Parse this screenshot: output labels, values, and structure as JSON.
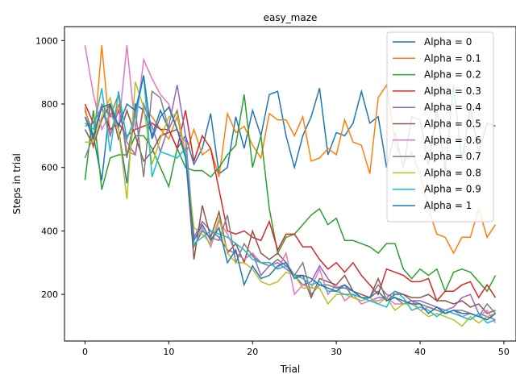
{
  "chart_data": {
    "type": "line",
    "title": "easy_maze",
    "xlabel": "Trial",
    "ylabel": "Steps in trial",
    "xlim": [
      -2.45,
      51.45
    ],
    "ylim": [
      53,
      1044
    ],
    "xticks": [
      0,
      10,
      20,
      30,
      40,
      50
    ],
    "yticks": [
      200,
      400,
      600,
      800,
      1000
    ],
    "grid": false,
    "legend_position": "top-right",
    "series": [
      {
        "name": "Alpha = 0",
        "color": "#1f77b4",
        "values": [
          780,
          700,
          560,
          800,
          720,
          550,
          800,
          780,
          700,
          780,
          720,
          660,
          700,
          610,
          660,
          770,
          580,
          600,
          760,
          660,
          780,
          700,
          830,
          840,
          700,
          600,
          700,
          760,
          850,
          640,
          710,
          700,
          740,
          840,
          740,
          760,
          600,
          710,
          600,
          760,
          750,
          610,
          780,
          590,
          860,
          620,
          790,
          650,
          740,
          730
        ]
      },
      {
        "name": "Alpha = 0.1",
        "color": "#ff7f0e",
        "values": [
          790,
          660,
          985,
          700,
          800,
          650,
          640,
          790,
          760,
          720,
          690,
          760,
          640,
          720,
          640,
          660,
          570,
          770,
          710,
          730,
          670,
          630,
          770,
          750,
          750,
          700,
          760,
          620,
          630,
          660,
          640,
          750,
          680,
          670,
          580,
          820,
          860,
          680,
          610,
          650,
          580,
          470,
          390,
          380,
          330,
          380,
          380,
          470,
          380,
          420
        ]
      },
      {
        "name": "Alpha = 0.2",
        "color": "#2ca02c",
        "values": [
          560,
          780,
          530,
          630,
          640,
          640,
          700,
          700,
          660,
          600,
          540,
          660,
          600,
          590,
          590,
          570,
          600,
          640,
          670,
          830,
          600,
          700,
          470,
          330,
          380,
          390,
          420,
          450,
          470,
          420,
          440,
          370,
          370,
          360,
          350,
          330,
          360,
          360,
          280,
          250,
          280,
          260,
          280,
          210,
          270,
          280,
          270,
          240,
          210,
          260
        ]
      },
      {
        "name": "Alpha = 0.3",
        "color": "#d62728",
        "values": [
          800,
          740,
          790,
          720,
          740,
          700,
          720,
          730,
          740,
          720,
          720,
          660,
          780,
          620,
          700,
          660,
          530,
          400,
          390,
          400,
          380,
          370,
          430,
          340,
          390,
          390,
          350,
          350,
          310,
          280,
          300,
          270,
          300,
          260,
          230,
          200,
          280,
          270,
          260,
          240,
          240,
          250,
          180,
          210,
          210,
          230,
          240,
          190,
          230,
          190
        ]
      },
      {
        "name": "Alpha = 0.4",
        "color": "#9467bd",
        "values": [
          730,
          740,
          790,
          700,
          780,
          680,
          640,
          800,
          730,
          650,
          730,
          860,
          700,
          380,
          430,
          400,
          380,
          340,
          330,
          310,
          330,
          260,
          290,
          300,
          280,
          260,
          230,
          240,
          290,
          250,
          220,
          220,
          210,
          190,
          180,
          190,
          190,
          210,
          200,
          180,
          180,
          170,
          160,
          150,
          160,
          190,
          200,
          140,
          130,
          120
        ]
      },
      {
        "name": "Alpha = 0.5",
        "color": "#8c564b",
        "values": [
          720,
          670,
          750,
          800,
          690,
          780,
          700,
          620,
          650,
          700,
          710,
          720,
          640,
          310,
          480,
          380,
          460,
          330,
          360,
          300,
          400,
          330,
          310,
          330,
          300,
          260,
          260,
          190,
          250,
          240,
          230,
          260,
          210,
          200,
          190,
          250,
          180,
          200,
          200,
          190,
          190,
          200,
          180,
          180,
          170,
          180,
          160,
          170,
          140,
          150
        ]
      },
      {
        "name": "Alpha = 0.6",
        "color": "#e377c2",
        "values": [
          985,
          830,
          720,
          770,
          720,
          985,
          720,
          940,
          880,
          830,
          800,
          720,
          680,
          350,
          410,
          350,
          430,
          390,
          330,
          310,
          330,
          300,
          300,
          280,
          330,
          200,
          230,
          220,
          280,
          200,
          230,
          180,
          200,
          170,
          180,
          180,
          190,
          170,
          170,
          180,
          150,
          160,
          150,
          140,
          150,
          130,
          140,
          130,
          150,
          110
        ]
      },
      {
        "name": "Alpha = 0.7",
        "color": "#7f7f7f",
        "values": [
          630,
          700,
          800,
          760,
          830,
          630,
          780,
          570,
          840,
          820,
          720,
          780,
          640,
          350,
          400,
          380,
          370,
          450,
          300,
          360,
          320,
          300,
          290,
          310,
          290,
          260,
          300,
          200,
          230,
          230,
          220,
          230,
          190,
          180,
          190,
          230,
          200,
          190,
          170,
          180,
          170,
          160,
          150,
          140,
          150,
          150,
          140,
          130,
          170,
          140
        ]
      },
      {
        "name": "Alpha = 0.8",
        "color": "#bcbd22",
        "values": [
          680,
          680,
          760,
          820,
          720,
          500,
          870,
          790,
          610,
          690,
          760,
          770,
          640,
          410,
          390,
          360,
          440,
          330,
          300,
          300,
          280,
          240,
          230,
          240,
          270,
          260,
          220,
          220,
          220,
          170,
          200,
          200,
          190,
          180,
          190,
          170,
          190,
          150,
          170,
          170,
          150,
          130,
          140,
          130,
          120,
          100,
          130,
          110,
          130,
          140
        ]
      },
      {
        "name": "Alpha = 0.9",
        "color": "#17becf",
        "values": [
          740,
          720,
          850,
          650,
          840,
          690,
          760,
          890,
          570,
          650,
          640,
          630,
          660,
          360,
          380,
          400,
          390,
          380,
          360,
          340,
          310,
          300,
          300,
          280,
          290,
          260,
          250,
          230,
          240,
          210,
          210,
          200,
          200,
          190,
          180,
          170,
          160,
          210,
          190,
          150,
          160,
          150,
          130,
          150,
          140,
          130,
          120,
          140,
          110,
          120
        ]
      },
      {
        "name": "Alpha = 1",
        "color": "#1f77b4",
        "values": [
          760,
          690,
          790,
          800,
          730,
          800,
          780,
          890,
          690,
          760,
          790,
          720,
          630,
          370,
          420,
          370,
          410,
          300,
          340,
          230,
          290,
          250,
          260,
          290,
          300,
          250,
          260,
          250,
          230,
          220,
          210,
          230,
          210,
          190,
          190,
          210,
          180,
          190,
          180,
          170,
          170,
          140,
          160,
          140,
          150,
          140,
          140,
          130,
          120,
          140
        ]
      }
    ]
  }
}
